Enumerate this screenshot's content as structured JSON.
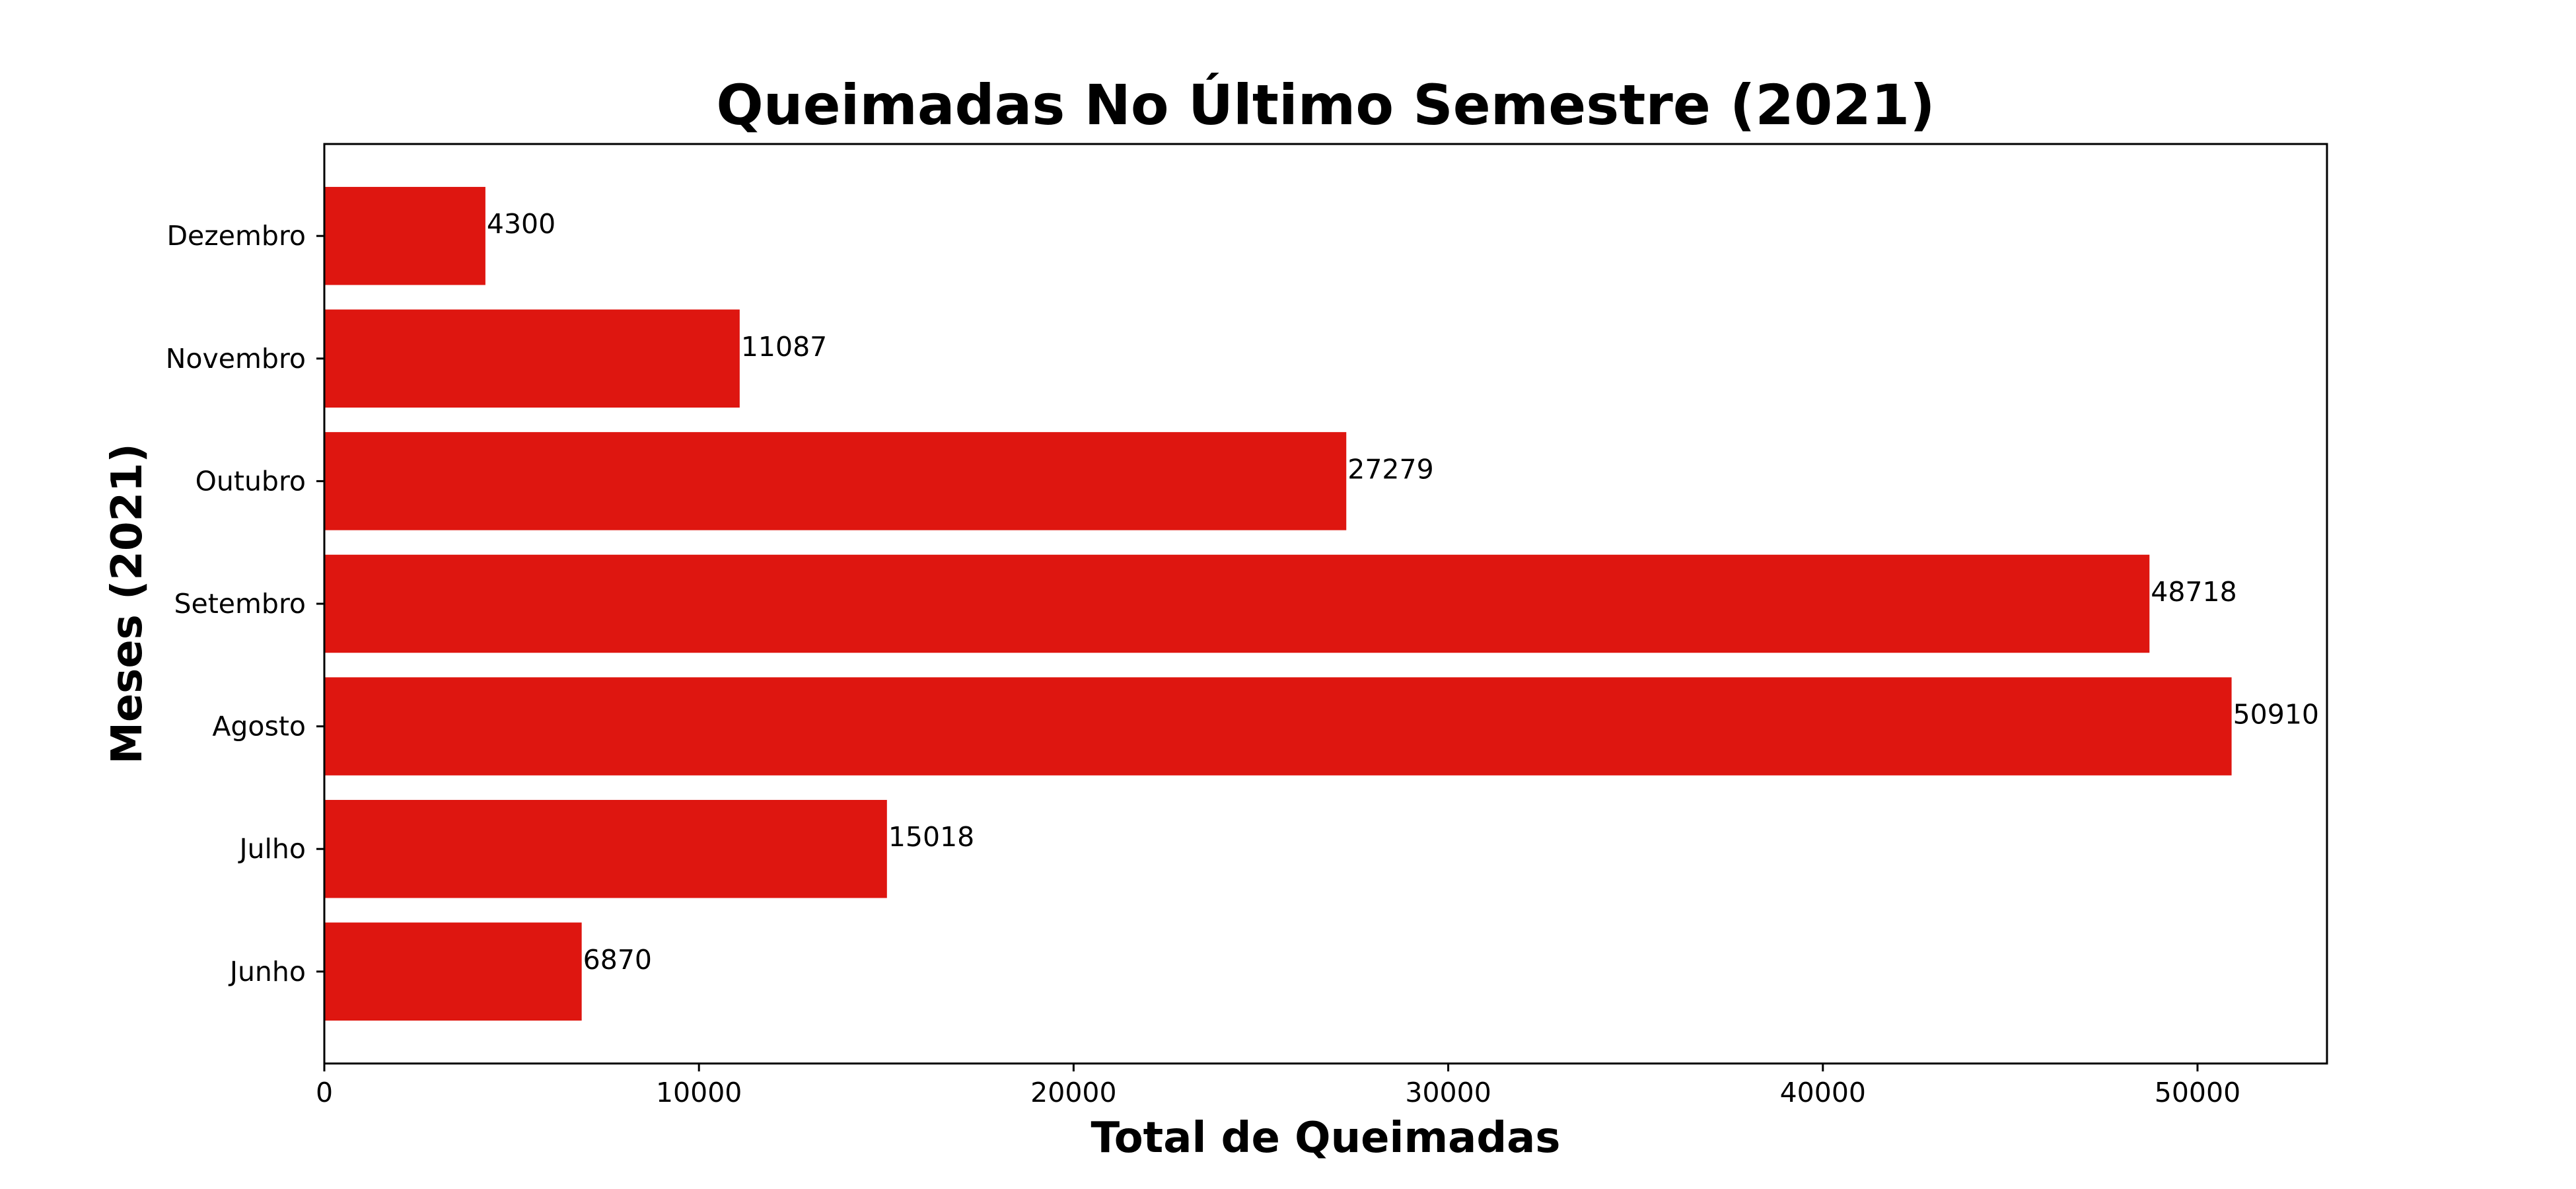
{
  "chart_data": {
    "type": "bar",
    "orientation": "horizontal",
    "title": "Queimadas No Último Semestre (2021)",
    "xlabel": "Total de Queimadas",
    "ylabel": "Meses (2021)",
    "categories": [
      "Junho",
      "Julho",
      "Agosto",
      "Setembro",
      "Outubro",
      "Novembro",
      "Dezembro"
    ],
    "values": [
      6870,
      15018,
      50910,
      48718,
      27279,
      11087,
      4300
    ],
    "data_labels": [
      "6870",
      "15018",
      "50910",
      "48718",
      "27279",
      "11087",
      "4300"
    ],
    "xlim": [
      0,
      53456
    ],
    "xticks": [
      0,
      10000,
      20000,
      30000,
      40000,
      50000
    ],
    "xtick_labels": [
      "0",
      "10000",
      "20000",
      "30000",
      "40000",
      "50000"
    ],
    "bar_color": "#de1610",
    "grid": false,
    "legend": "none"
  }
}
